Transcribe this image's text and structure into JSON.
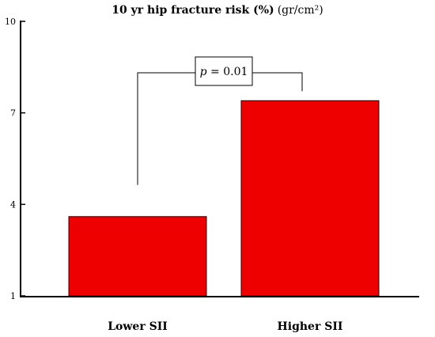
{
  "chart_data": {
    "type": "bar",
    "title": "10 yr hip fracture risk (%)",
    "title_unit": "(gr/cm²)",
    "categories": [
      "Lower SII",
      "Higher SII"
    ],
    "values": [
      3.6,
      7.4
    ],
    "ylim": [
      1,
      10
    ],
    "yticks": [
      "1",
      "4",
      "7",
      "10"
    ],
    "xlabel": "",
    "ylabel": "",
    "grid": false,
    "bar_color": "#ee0000",
    "annotation": {
      "p_symbol": "p",
      "p_rest": " = 0.01"
    }
  }
}
